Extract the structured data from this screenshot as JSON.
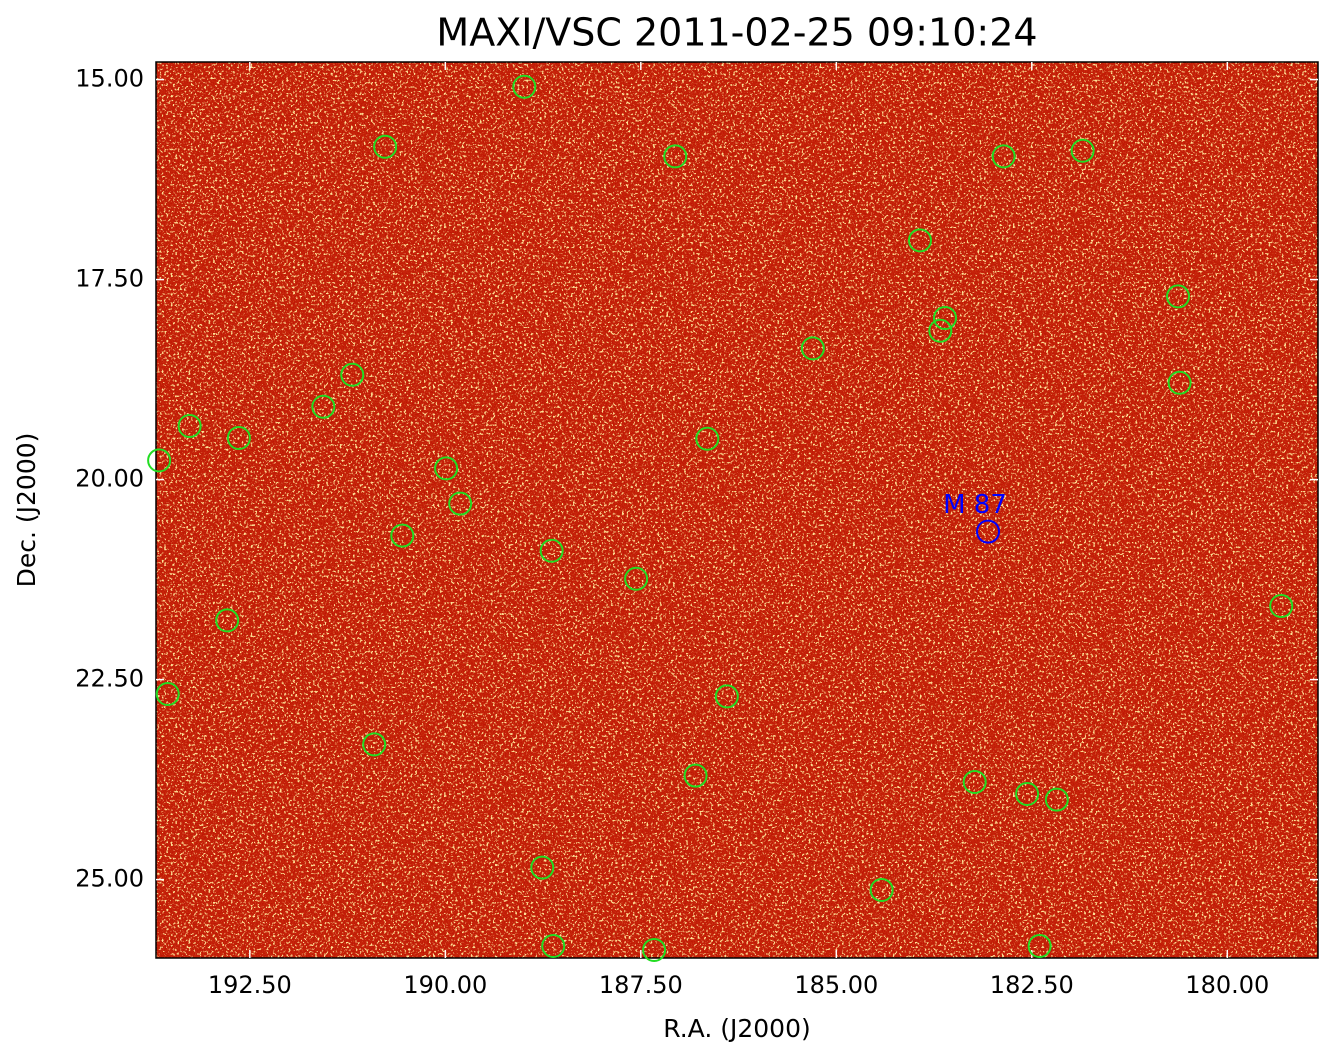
{
  "chart_data": {
    "type": "scatter",
    "title": "MAXI/VSC 2011-02-25 09:10:24",
    "x_label": "R.A. (J2000)",
    "y_label": "Dec. (J2000)",
    "xlim": [
      193.7,
      178.84
    ],
    "ylim": [
      14.78,
      25.98
    ],
    "xticks": [
      {
        "value": 192.5,
        "label": "192.50"
      },
      {
        "value": 190,
        "label": "190.00"
      },
      {
        "value": 187.5,
        "label": "187.50"
      },
      {
        "value": 185,
        "label": "185.00"
      },
      {
        "value": 182.5,
        "label": "182.50"
      },
      {
        "value": 180,
        "label": "180.00"
      }
    ],
    "yticks": [
      {
        "value": 15,
        "label": "15.00"
      },
      {
        "value": 17.5,
        "label": "17.50"
      },
      {
        "value": 20,
        "label": "20.00"
      },
      {
        "value": 22.5,
        "label": "22.50"
      },
      {
        "value": 25,
        "label": "25.00"
      }
    ],
    "x": [
      188.99,
      190.77,
      187.06,
      182.86,
      181.85,
      183.93,
      180.63,
      183.61,
      183.67,
      185.3,
      191.19,
      191.56,
      180.61,
      193.27,
      192.64,
      186.65,
      193.66,
      189.99,
      189.81,
      190.55,
      188.64,
      187.56,
      192.79,
      179.31,
      193.55,
      186.4,
      190.91,
      186.8,
      183.23,
      182.56,
      182.18,
      188.76,
      184.42,
      188.62,
      187.33,
      182.4
    ],
    "values": [
      15.09,
      15.84,
      15.96,
      15.96,
      15.89,
      17.01,
      17.71,
      17.98,
      18.14,
      18.36,
      18.69,
      19.09,
      18.79,
      19.33,
      19.48,
      19.49,
      19.76,
      19.86,
      20.3,
      20.7,
      20.89,
      21.24,
      21.76,
      21.58,
      22.68,
      22.71,
      23.31,
      23.7,
      23.78,
      23.93,
      24.0,
      24.85,
      25.13,
      25.83,
      25.88,
      25.83
    ],
    "color": "#22dd22",
    "annotations": [
      {
        "text": "M 87",
        "x": 183.06,
        "y": 20.65,
        "color": "#0000ff"
      }
    ]
  }
}
